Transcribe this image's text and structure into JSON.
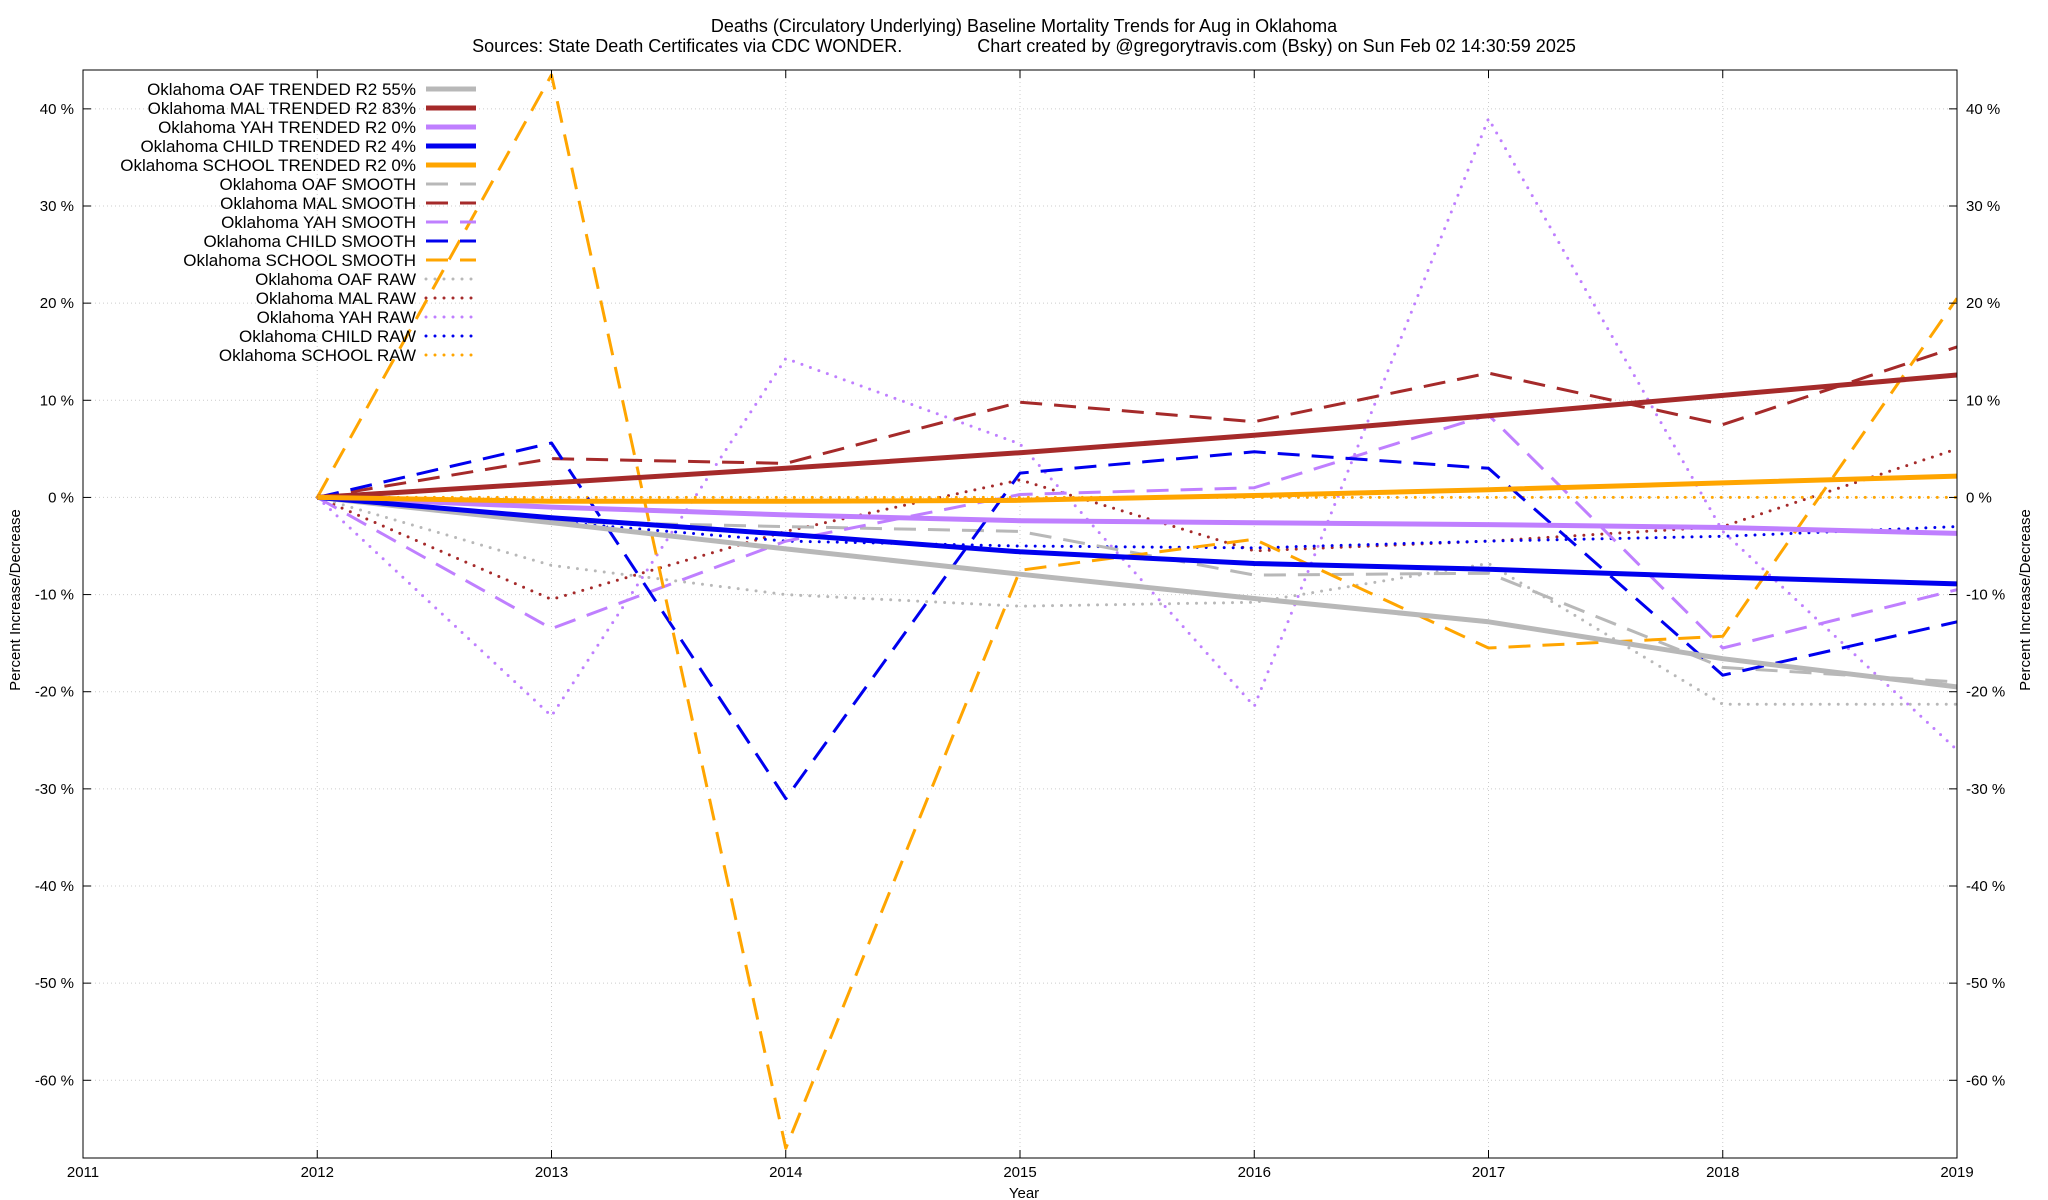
{
  "chart_data": {
    "type": "line",
    "title": "Deaths (Circulatory Underlying)  Baseline Mortality Trends for Aug in Oklahoma",
    "subtitle": "Sources: State Death Certificates via CDC WONDER.               Chart created by @gregorytravis.com (Bsky) on Sun Feb 02 14:30:59 2025",
    "xlabel": "Year",
    "ylabel": "Percent Increase/Decrease",
    "y2label": "Percent Increase/Decrease",
    "xlim": [
      2011,
      2019
    ],
    "ylim": [
      -68,
      44
    ],
    "x_ticks": [
      "2011",
      "2012",
      "2013",
      "2014",
      "2015",
      "2016",
      "2017",
      "2018",
      "2019"
    ],
    "y_ticks": [
      {
        "value": 40,
        "label": "40 %"
      },
      {
        "value": 30,
        "label": "30 %"
      },
      {
        "value": 20,
        "label": "20 %"
      },
      {
        "value": 10,
        "label": "10 %"
      },
      {
        "value": 0,
        "label": "0 %"
      },
      {
        "value": -10,
        "label": "-10 %"
      },
      {
        "value": -20,
        "label": "-20 %"
      },
      {
        "value": -30,
        "label": "-30 %"
      },
      {
        "value": -40,
        "label": "-40 %"
      },
      {
        "value": -50,
        "label": "-50 %"
      },
      {
        "value": -60,
        "label": "-60 %"
      }
    ],
    "grid": true,
    "legend_position": "top-left",
    "x": [
      2012,
      2013,
      2014,
      2015,
      2016,
      2017,
      2018,
      2019
    ],
    "series": [
      {
        "name": "Oklahoma OAF TRENDED R2  55%",
        "style": "solid",
        "color": "#b8b8b8",
        "values": [
          0,
          -2.6,
          -5.3,
          -7.9,
          -10.4,
          -12.8,
          -16.6,
          -19.5
        ]
      },
      {
        "name": "Oklahoma MAL TRENDED R2  83%",
        "style": "solid",
        "color": "#a52a2a",
        "values": [
          0,
          1.5,
          3.0,
          4.6,
          6.4,
          8.4,
          10.5,
          12.6
        ]
      },
      {
        "name": "Oklahoma YAH TRENDED R2   0%",
        "style": "solid",
        "color": "#bf7fff",
        "values": [
          0,
          -1.0,
          -1.8,
          -2.4,
          -2.6,
          -2.8,
          -3.1,
          -3.7
        ]
      },
      {
        "name": "Oklahoma CHILD TRENDED R2   4%",
        "style": "solid",
        "color": "#0000ee",
        "values": [
          0,
          -2.1,
          -3.8,
          -5.6,
          -6.8,
          -7.4,
          -8.2,
          -8.9
        ]
      },
      {
        "name": "Oklahoma SCHOOL TRENDED R2   0%",
        "style": "solid",
        "color": "#ffa500",
        "values": [
          0,
          -0.4,
          -0.4,
          -0.3,
          0.2,
          0.8,
          1.5,
          2.2
        ]
      },
      {
        "name": "Oklahoma OAF SMOOTH",
        "style": "dashed",
        "color": "#b8b8b8",
        "values": [
          0,
          -2.5,
          -3.0,
          -3.5,
          -8.0,
          -7.8,
          -17.5,
          -19.0
        ]
      },
      {
        "name": "Oklahoma MAL SMOOTH",
        "style": "dashed",
        "color": "#a52a2a",
        "values": [
          0,
          4.0,
          3.5,
          9.8,
          7.8,
          12.8,
          7.5,
          15.5
        ]
      },
      {
        "name": "Oklahoma YAH SMOOTH",
        "style": "dashed",
        "color": "#bf7fff",
        "values": [
          0,
          -13.5,
          -4.5,
          0.3,
          1.0,
          8.5,
          -15.5,
          -9.5
        ]
      },
      {
        "name": "Oklahoma CHILD SMOOTH",
        "style": "dashed",
        "color": "#0000ee",
        "values": [
          0,
          5.6,
          -31.0,
          2.5,
          4.7,
          3.0,
          -18.3,
          -12.8
        ]
      },
      {
        "name": "Oklahoma SCHOOL SMOOTH",
        "style": "dashed",
        "color": "#ffa500",
        "values": [
          0,
          43.5,
          -67.0,
          -7.5,
          -4.3,
          -15.5,
          -14.3,
          20.5
        ]
      },
      {
        "name": "Oklahoma OAF RAW",
        "style": "dotted",
        "color": "#b8b8b8",
        "values": [
          0,
          -7.0,
          -10.0,
          -11.2,
          -10.8,
          -6.8,
          -21.3,
          -21.3
        ]
      },
      {
        "name": "Oklahoma MAL RAW",
        "style": "dotted",
        "color": "#a52a2a",
        "values": [
          0,
          -10.5,
          -3.5,
          1.8,
          -5.5,
          -4.5,
          -3.0,
          5.0
        ]
      },
      {
        "name": "Oklahoma YAH RAW",
        "style": "dotted",
        "color": "#bf7fff",
        "values": [
          0,
          -22.5,
          14.3,
          5.5,
          -21.5,
          39.0,
          -3.5,
          -26.0
        ]
      },
      {
        "name": "Oklahoma CHILD RAW",
        "style": "dotted",
        "color": "#0000ee",
        "values": [
          0,
          -2.5,
          -4.5,
          -5.0,
          -5.2,
          -4.5,
          -4.0,
          -3.0
        ]
      },
      {
        "name": "Oklahoma SCHOOL RAW",
        "style": "dotted",
        "color": "#ffa500",
        "values": [
          0,
          0,
          0,
          0,
          0,
          0,
          0,
          0
        ]
      }
    ]
  }
}
